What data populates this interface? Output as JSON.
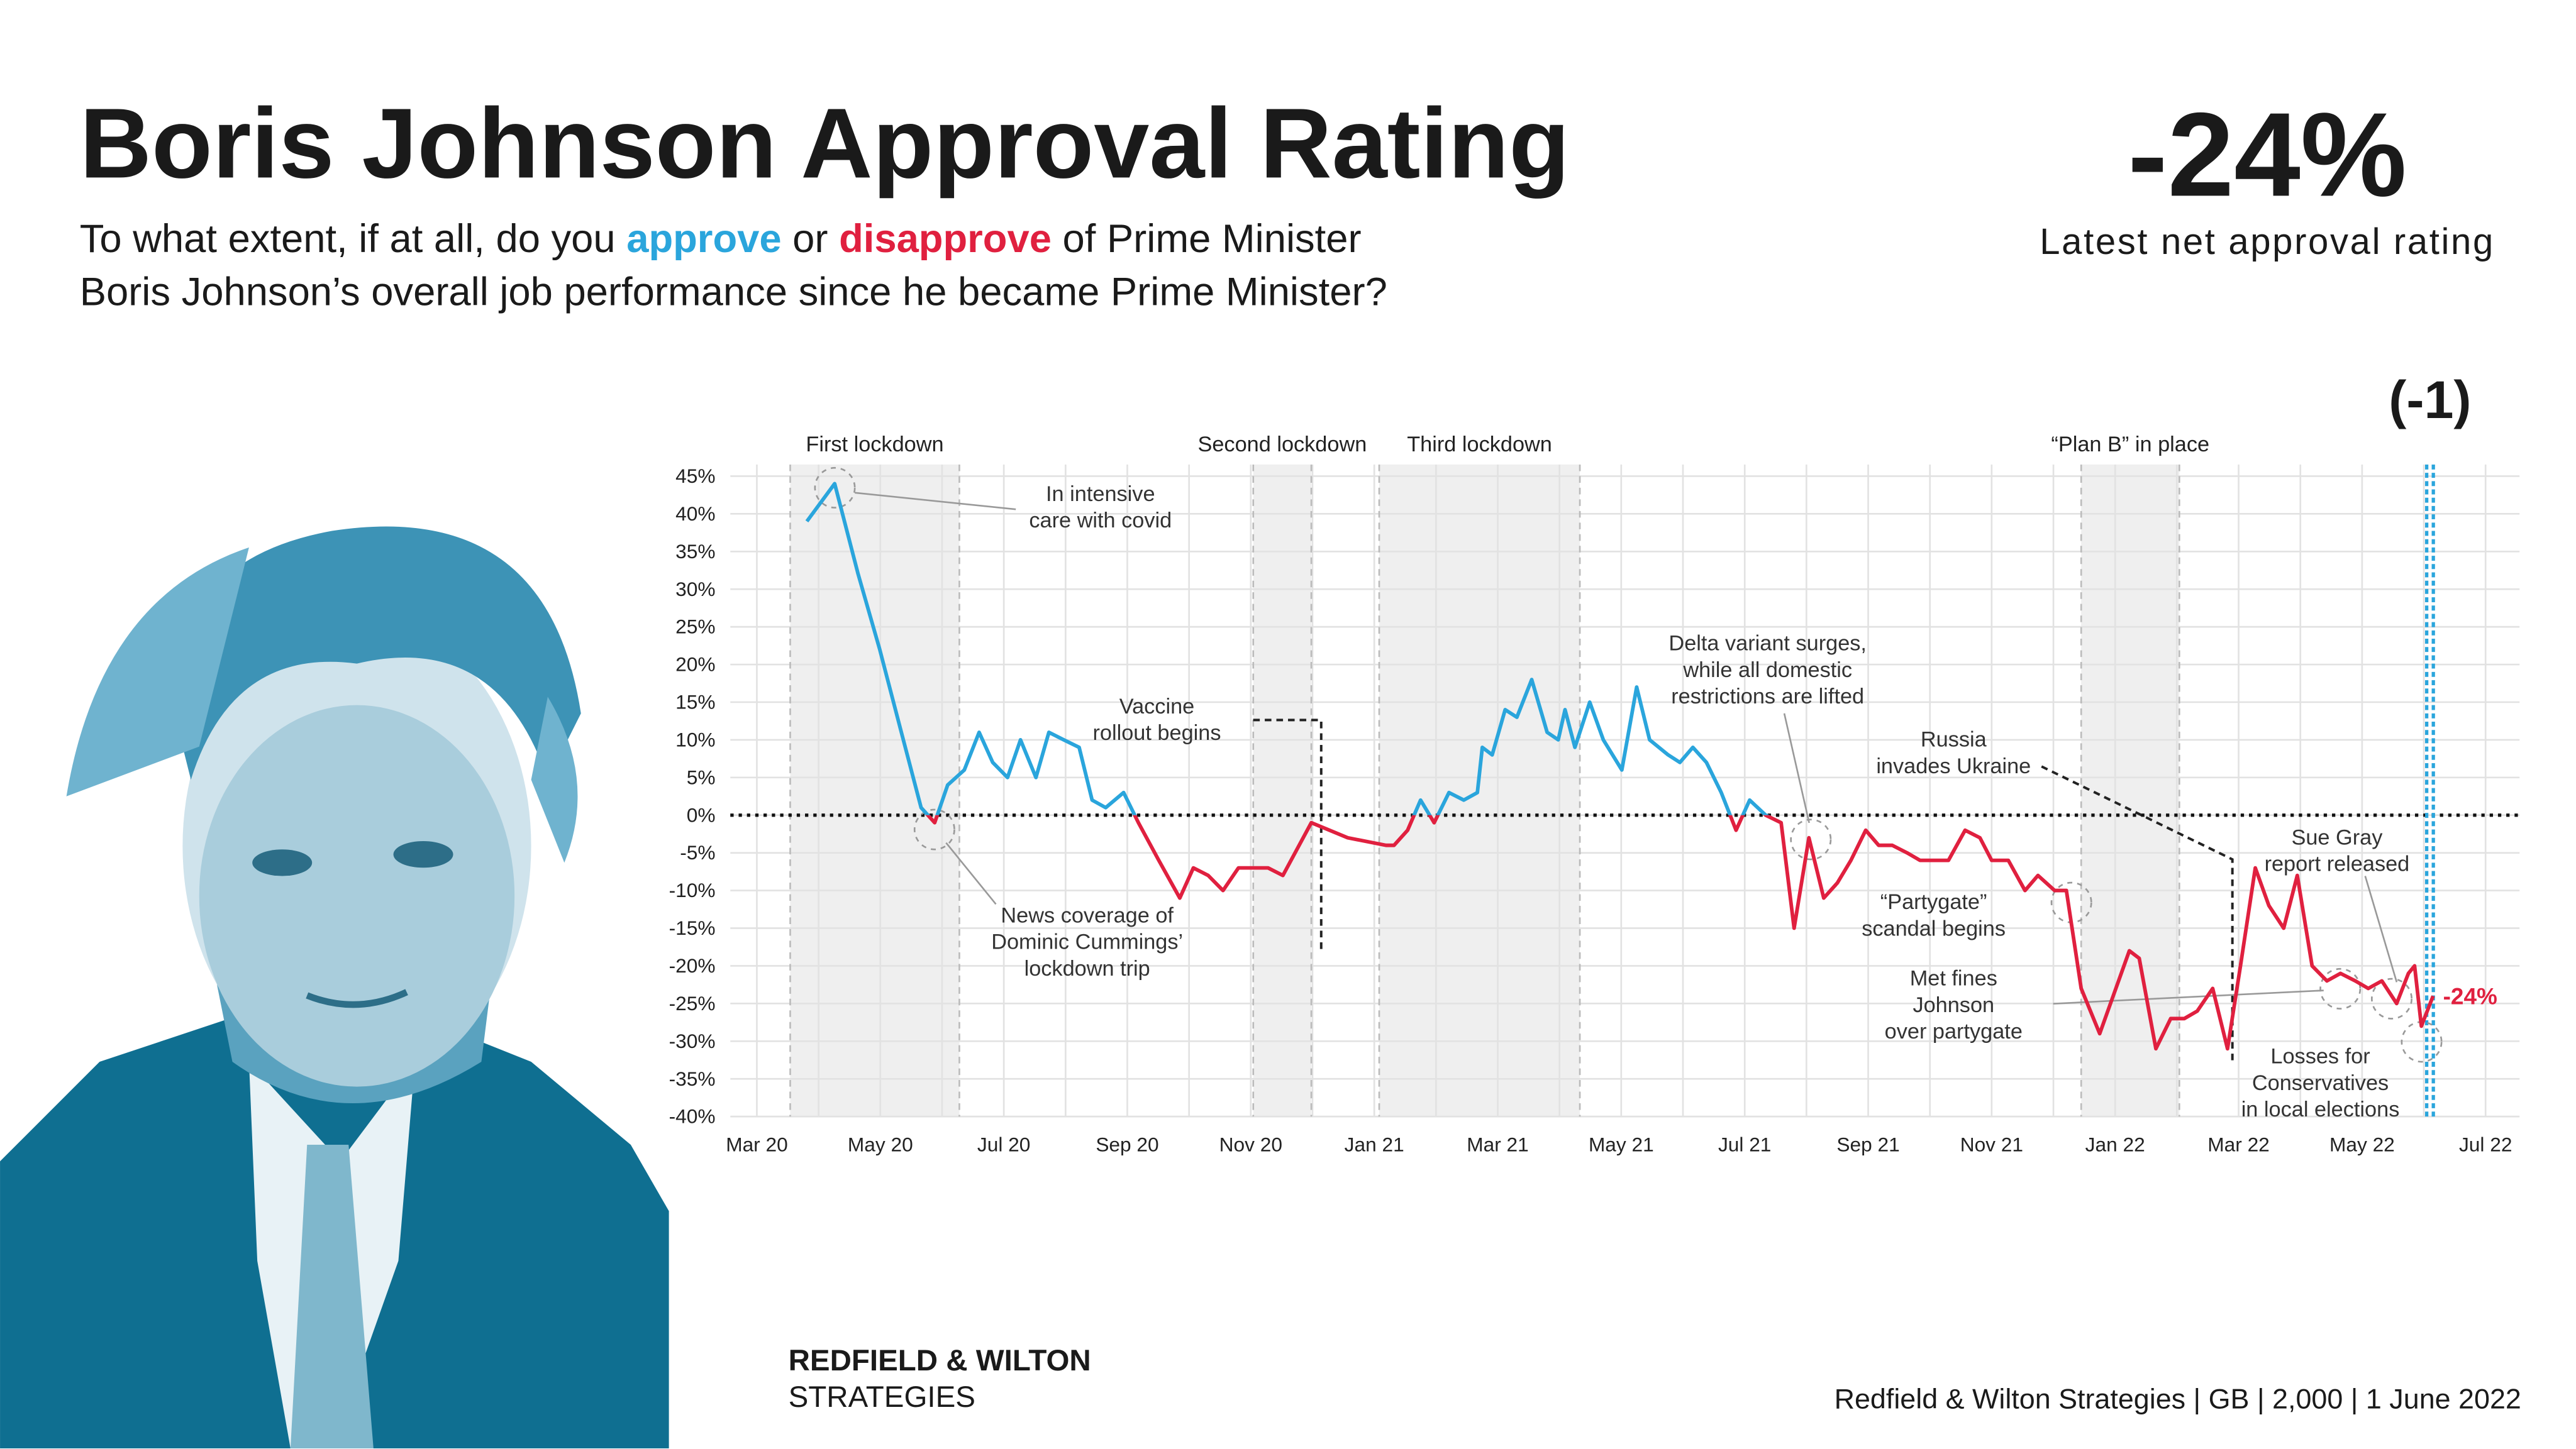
{
  "chart_data": {
    "type": "line",
    "title": "Boris Johnson Approval Rating",
    "subtitle_parts": [
      {
        "text": "To what extent, if at all, do you "
      },
      {
        "text": "approve",
        "color": "#2aa5dc"
      },
      {
        "text": " or "
      },
      {
        "text": "disapprove",
        "color": "#e0203f"
      },
      {
        "text": " of Prime Minister"
      }
    ],
    "subtitle_line2": "Boris Johnson’s overall job performance since he became Prime Minister?",
    "headline": "-24%",
    "headline_caption": "Latest net approval rating",
    "marker": {
      "x": 27.1,
      "label": "(-1)",
      "color": "#2aa5dc"
    },
    "xlim": [
      -0.43,
      28.55
    ],
    "xticks": [
      {
        "value": 0,
        "label": "Mar 20"
      },
      {
        "value": 2,
        "label": "May 20"
      },
      {
        "value": 4,
        "label": "Jul 20"
      },
      {
        "value": 6,
        "label": "Sep 20"
      },
      {
        "value": 8,
        "label": "Nov 20"
      },
      {
        "value": 10,
        "label": "Jan 21"
      },
      {
        "value": 12,
        "label": "Mar 21"
      },
      {
        "value": 14,
        "label": "May 21"
      },
      {
        "value": 16,
        "label": "Jul 21"
      },
      {
        "value": 18,
        "label": "Sep 21"
      },
      {
        "value": 20,
        "label": "Nov 21"
      },
      {
        "value": 22,
        "label": "Jan 22"
      },
      {
        "value": 24,
        "label": "Mar 22"
      },
      {
        "value": 26,
        "label": "May 22"
      },
      {
        "value": 28,
        "label": "Jul 22"
      }
    ],
    "ylim": [
      -40,
      45
    ],
    "yticks": [
      {
        "value": 45,
        "label": "45%"
      },
      {
        "value": 40,
        "label": "40%"
      },
      {
        "value": 35,
        "label": "35%"
      },
      {
        "value": 30,
        "label": "30%"
      },
      {
        "value": 25,
        "label": "25%"
      },
      {
        "value": 20,
        "label": "20%"
      },
      {
        "value": 15,
        "label": "15%"
      },
      {
        "value": 10,
        "label": "10%"
      },
      {
        "value": 5,
        "label": "5%"
      },
      {
        "value": 0,
        "label": "0%"
      },
      {
        "value": -5,
        "label": "-5%"
      },
      {
        "value": -10,
        "label": "-10%"
      },
      {
        "value": -15,
        "label": "-15%"
      },
      {
        "value": -20,
        "label": "-20%"
      },
      {
        "value": -25,
        "label": "-25%"
      },
      {
        "value": -30,
        "label": "-30%"
      },
      {
        "value": -35,
        "label": "-35%"
      },
      {
        "value": -40,
        "label": "-40%"
      }
    ],
    "grid": true,
    "positive_color": "#2aa5dc",
    "negative_color": "#e0203f",
    "series": [
      {
        "x": [
          0.81,
          1.26,
          1.64,
          1.99,
          2.34,
          2.66,
          2.88,
          3.09,
          3.36,
          3.6,
          3.82,
          4.06,
          4.27,
          4.52,
          4.73,
          4.97,
          5.22,
          5.43,
          5.65,
          5.94,
          6.18,
          6.51,
          6.85,
          7.07,
          7.31,
          7.55,
          7.8,
          8.04,
          8.28,
          8.52,
          8.98,
          9.57,
          10.19,
          10.32,
          10.54,
          10.75,
          10.97,
          11.21,
          11.45,
          11.67,
          11.75,
          11.91,
          12.12,
          12.31,
          12.55,
          12.8,
          12.98,
          13.09,
          13.25,
          13.49,
          13.71,
          14.01,
          14.25,
          14.46,
          14.76,
          14.95,
          15.16,
          15.38,
          15.62,
          15.86,
          16.08,
          16.34,
          16.59,
          16.8,
          17.04,
          17.28,
          17.5,
          17.72,
          17.96,
          18.17,
          18.39,
          18.63,
          18.84,
          19.09,
          19.3,
          19.57,
          19.81,
          20,
          20.27,
          20.54,
          20.75,
          21.02,
          21.21,
          21.45,
          21.75,
          22.23,
          22.39,
          22.66,
          22.9,
          23.12,
          23.33,
          23.58,
          23.82,
          24.03,
          24.27,
          24.49,
          24.73,
          24.95,
          25.19,
          25.43,
          25.65,
          25.89,
          26.1,
          26.32,
          26.56,
          26.75,
          26.85,
          26.96,
          27.15
        ],
        "values": [
          39,
          44,
          32,
          22,
          11,
          1,
          -1,
          4,
          6,
          11,
          7,
          5,
          10,
          5,
          11,
          10,
          9,
          2,
          1,
          3,
          -1,
          -6,
          -11,
          -7,
          -8,
          -10,
          -7,
          -7,
          -7,
          -8,
          -1,
          -3,
          -4,
          -4,
          -2,
          2,
          -1,
          3,
          2,
          3,
          9,
          8,
          14,
          13,
          18,
          11,
          10,
          14,
          9,
          15,
          10,
          6,
          17,
          10,
          8,
          7,
          9,
          7,
          3,
          -2,
          2,
          0,
          -1,
          -15,
          -3,
          -11,
          -9,
          -6,
          -2,
          -4,
          -4,
          -5,
          -6,
          -6,
          -6,
          -2,
          -3,
          -6,
          -6,
          -10,
          -8,
          -10,
          -10,
          -23,
          -29,
          -18,
          -19,
          -31,
          -27,
          -27,
          -26,
          -23,
          -31,
          -20,
          -7,
          -12,
          -15,
          -8,
          -20,
          -22,
          -21,
          -22,
          -23,
          -22,
          -25,
          -21,
          -20,
          -28,
          -24
        ],
        "last_label": "-24%"
      }
    ],
    "periods": [
      {
        "label": "First lockdown",
        "start": 0.54,
        "end": 3.28
      },
      {
        "label": "Second lockdown",
        "start": 8.04,
        "end": 8.98
      },
      {
        "label": "Third lockdown",
        "start": 10.08,
        "end": 13.33
      },
      {
        "label": "“Plan B” in place",
        "start": 21.45,
        "end": 23.04
      }
    ],
    "annotations": [
      {
        "lines": [
          "In intensive",
          "care with covid"
        ]
      },
      {
        "lines": [
          "News coverage of",
          "Dominic Cummings’",
          "lockdown trip"
        ]
      },
      {
        "lines": [
          "Vaccine",
          "rollout begins"
        ]
      },
      {
        "lines": [
          "Delta variant surges,",
          "while all domestic",
          "restrictions are lifted"
        ]
      },
      {
        "lines": [
          "Russia",
          "invades Ukraine"
        ]
      },
      {
        "lines": [
          "“Partygate”",
          "scandal begins"
        ]
      },
      {
        "lines": [
          "Met fines",
          "Johnson",
          "over partygate"
        ]
      },
      {
        "lines": [
          "Sue Gray",
          "report released"
        ]
      },
      {
        "lines": [
          "Losses for",
          "Conservatives",
          "in local elections"
        ]
      }
    ],
    "brand": [
      "REDFIELD & WILTON",
      "STRATEGIES"
    ],
    "source": "Redfield & Wilton Strategies | GB | 2,000 | 1 June 2022"
  }
}
